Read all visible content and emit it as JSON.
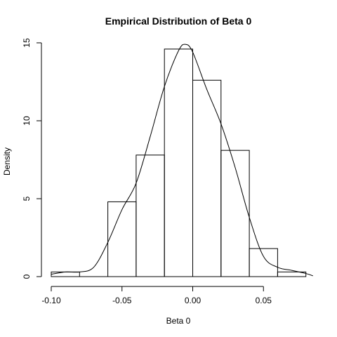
{
  "chart_data": {
    "type": "bar",
    "title": "Empirical Distribution of Beta 0",
    "xlabel": "Beta 0",
    "ylabel": "Density",
    "xlim": [
      -0.1,
      0.085
    ],
    "ylim": [
      0,
      15
    ],
    "x_ticks": [
      -0.1,
      -0.05,
      0.0,
      0.05
    ],
    "x_tick_labels": [
      "-0.10",
      "-0.05",
      "0.00",
      "0.05"
    ],
    "y_ticks": [
      0,
      5,
      10,
      15
    ],
    "y_tick_labels": [
      "0",
      "5",
      "10",
      "15"
    ],
    "bins": [
      {
        "x0": -0.1,
        "x1": -0.08,
        "density": 0.3
      },
      {
        "x0": -0.08,
        "x1": -0.06,
        "density": 0.0
      },
      {
        "x0": -0.06,
        "x1": -0.04,
        "density": 4.8
      },
      {
        "x0": -0.04,
        "x1": -0.02,
        "density": 7.8
      },
      {
        "x0": -0.02,
        "x1": 0.0,
        "density": 14.6
      },
      {
        "x0": 0.0,
        "x1": 0.02,
        "density": 12.6
      },
      {
        "x0": 0.02,
        "x1": 0.04,
        "density": 8.1
      },
      {
        "x0": 0.04,
        "x1": 0.06,
        "density": 1.8
      },
      {
        "x0": 0.06,
        "x1": 0.08,
        "density": 0.3
      }
    ],
    "density_curve": {
      "x": [
        -0.1,
        -0.09,
        -0.08,
        -0.07,
        -0.06,
        -0.05,
        -0.04,
        -0.03,
        -0.02,
        -0.01,
        -0.005,
        0.0,
        0.01,
        0.02,
        0.03,
        0.04,
        0.05,
        0.06,
        0.07,
        0.08,
        0.085
      ],
      "y": [
        0.15,
        0.3,
        0.3,
        0.6,
        2.2,
        4.3,
        6.0,
        9.0,
        12.2,
        14.5,
        14.9,
        14.4,
        12.0,
        9.8,
        7.0,
        3.8,
        1.3,
        0.6,
        0.4,
        0.2,
        0.05
      ]
    }
  }
}
